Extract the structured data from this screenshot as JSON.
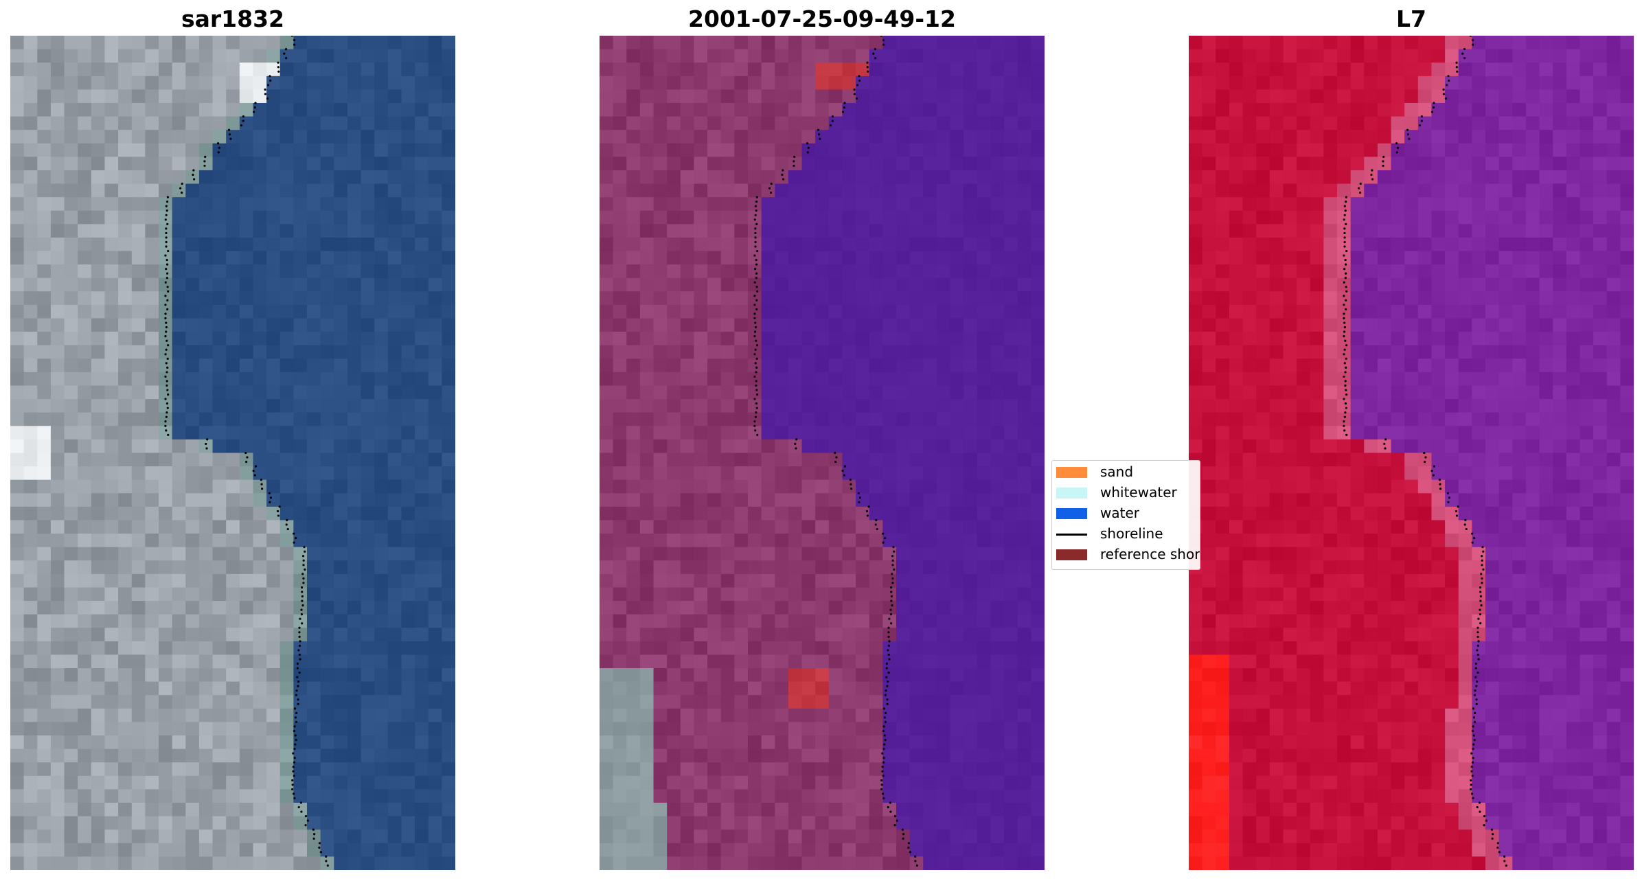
{
  "panels": [
    {
      "title": "sar1832"
    },
    {
      "title": "2001-07-25-09-49-12"
    },
    {
      "title": "L7"
    }
  ],
  "legend": {
    "items": [
      {
        "label": "sand",
        "color": "#ff8c3b",
        "kind": "patch"
      },
      {
        "label": "whitewater",
        "color": "#c8f5f5",
        "kind": "patch"
      },
      {
        "label": "water",
        "color": "#1060e8",
        "kind": "patch"
      },
      {
        "label": "shoreline",
        "color": "#000000",
        "kind": "line"
      },
      {
        "label": "reference shoreline",
        "color": "#8b2a2a",
        "kind": "patch"
      }
    ]
  },
  "colors": {
    "rgb_water": "#2a4d82",
    "rgb_land": "#9aa0a8",
    "classified_land": "#8c3a6e",
    "classified_water": "#56209a",
    "classified_whitewater_land": "#8a9a9e",
    "classified_sand": "#c0353f",
    "falsecolor_land": "#c4103a",
    "falsecolor_water": "#7e26a0",
    "falsecolor_beach": "#d2507a",
    "falsecolor_bright": "#ff2020"
  }
}
